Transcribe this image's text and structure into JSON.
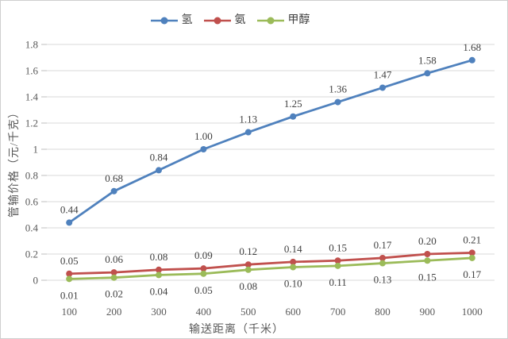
{
  "chart_data": {
    "type": "line",
    "title": "",
    "xlabel": "输送距离（千米）",
    "ylabel": "管输价格（元/千克）",
    "x": [
      100,
      200,
      300,
      400,
      500,
      600,
      700,
      800,
      900,
      1000
    ],
    "ylim": [
      0,
      1.8
    ],
    "yticks": [
      "0",
      "0.2",
      "0.4",
      "0.6",
      "0.8",
      "1",
      "1.2",
      "1.4",
      "1.6",
      "1.8"
    ],
    "grid": true,
    "legend_position": "top",
    "series": [
      {
        "name": "氢",
        "color": "#4F81BD",
        "values": [
          0.44,
          0.68,
          0.84,
          1.0,
          1.13,
          1.25,
          1.36,
          1.47,
          1.58,
          1.68
        ],
        "labels": [
          "0.44",
          "0.68",
          "0.84",
          "1.00",
          "1.13",
          "1.25",
          "1.36",
          "1.47",
          "1.58",
          "1.68"
        ],
        "label_position": "above"
      },
      {
        "name": "氨",
        "color": "#C0504D",
        "values": [
          0.05,
          0.06,
          0.08,
          0.09,
          0.12,
          0.14,
          0.15,
          0.17,
          0.2,
          0.21
        ],
        "labels": [
          "0.05",
          "0.06",
          "0.08",
          "0.09",
          "0.12",
          "0.14",
          "0.15",
          "0.17",
          "0.20",
          "0.21"
        ],
        "label_position": "above"
      },
      {
        "name": "甲醇",
        "color": "#9BBB59",
        "values": [
          0.01,
          0.02,
          0.04,
          0.05,
          0.08,
          0.1,
          0.11,
          0.13,
          0.15,
          0.17
        ],
        "labels": [
          "0.01",
          "0.02",
          "0.04",
          "0.05",
          "0.08",
          "0.10",
          "0.11",
          "0.13",
          "0.15",
          "0.17"
        ],
        "label_position": "below"
      }
    ],
    "colors": {
      "gridline": "#d9d9d9",
      "tick_mark": "#bfbfbf",
      "tick_text": "#595959",
      "data_label_text": "#3f3f3f"
    }
  }
}
